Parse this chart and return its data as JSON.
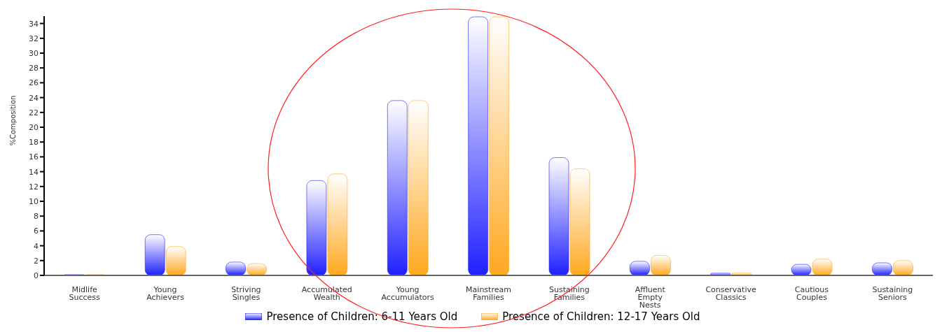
{
  "chart_data": {
    "type": "bar",
    "ylabel": "%Composition",
    "categories": [
      "Midlife Success",
      "Young Achievers",
      "Striving Singles",
      "Accumulated Wealth",
      "Young Accumulators",
      "Mainstream Families",
      "Sustaining Families",
      "Affluent Empty Nests",
      "Conservative Classics",
      "Cautious Couples",
      "Sustaining Seniors"
    ],
    "series": [
      {
        "name": "Presence of Children: 6-11 Years Old",
        "color": "#2020ff",
        "values": [
          0.1,
          5.5,
          1.8,
          12.8,
          23.6,
          34.9,
          15.9,
          1.9,
          0.3,
          1.5,
          1.7
        ]
      },
      {
        "name": "Presence of Children: 12-17 Years Old",
        "color": "#ffa820",
        "values": [
          0.1,
          3.9,
          1.6,
          13.7,
          23.6,
          34.9,
          14.4,
          2.7,
          0.3,
          2.2,
          2.0
        ]
      }
    ],
    "ylim": [
      0,
      35
    ],
    "yticks": [
      0,
      2,
      4,
      6,
      8,
      10,
      12,
      14,
      16,
      18,
      20,
      22,
      24,
      26,
      28,
      30,
      32,
      34
    ],
    "grid": false,
    "legend": "bottom"
  }
}
